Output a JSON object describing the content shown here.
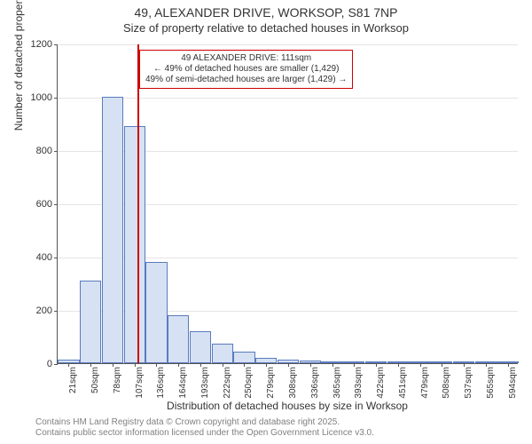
{
  "titles": {
    "line1": "49, ALEXANDER DRIVE, WORKSOP, S81 7NP",
    "line2": "Size of property relative to detached houses in Worksop"
  },
  "axes": {
    "ylabel": "Number of detached properties",
    "xlabel": "Distribution of detached houses by size in Worksop",
    "ylim": [
      0,
      1200
    ],
    "yticks": [
      0,
      200,
      400,
      600,
      800,
      1000,
      1200
    ],
    "ytick_labels": [
      "0",
      "200",
      "400",
      "600",
      "800",
      "1000",
      "1200"
    ]
  },
  "chart": {
    "type": "histogram",
    "bar_fill": "#d6e1f3",
    "bar_border": "#5a7bbf",
    "grid_color": "#e5e5e5",
    "background_color": "#ffffff",
    "categories": [
      "21sqm",
      "50sqm",
      "78sqm",
      "107sqm",
      "136sqm",
      "164sqm",
      "193sqm",
      "222sqm",
      "250sqm",
      "279sqm",
      "308sqm",
      "336sqm",
      "365sqm",
      "393sqm",
      "422sqm",
      "451sqm",
      "479sqm",
      "508sqm",
      "537sqm",
      "565sqm",
      "594sqm"
    ],
    "values": [
      15,
      310,
      1000,
      890,
      380,
      180,
      120,
      75,
      45,
      20,
      15,
      10,
      8,
      5,
      4,
      3,
      2,
      2,
      1,
      1,
      1
    ]
  },
  "marker": {
    "color": "#cc0000",
    "position_value": 111,
    "line1": "49 ALEXANDER DRIVE: 111sqm",
    "line2": "← 49% of detached houses are smaller (1,429)",
    "line3": "49% of semi-detached houses are larger (1,429) →"
  },
  "footer": {
    "line1": "Contains HM Land Registry data © Crown copyright and database right 2025.",
    "line2": "Contains public sector information licensed under the Open Government Licence v3.0."
  },
  "fonts": {
    "title_size_pt": 14,
    "subtitle_size_pt": 13,
    "axis_label_size_pt": 12,
    "tick_size_pt": 11,
    "annotation_size_pt": 10,
    "footer_size_pt": 10
  }
}
